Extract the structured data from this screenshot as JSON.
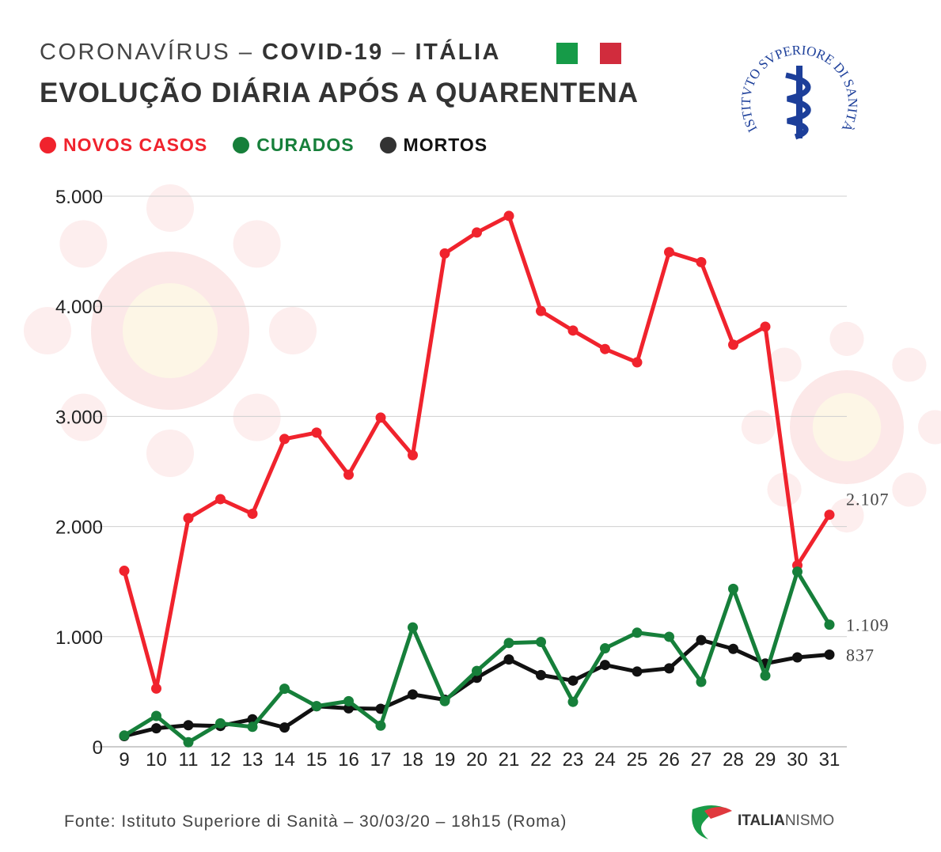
{
  "header": {
    "title_pre": "CORONAVÍRUS – ",
    "title_bold1": "COVID-19",
    "title_sep": " – ",
    "title_bold2": "ITÁLIA",
    "subtitle": "EVOLUÇÃO DIÁRIA APÓS A QUARENTENA"
  },
  "colors": {
    "red": "#f0232d",
    "green": "#167f3a",
    "black": "#111111",
    "flag_green": "#169b48",
    "flag_red": "#d12c3d"
  },
  "logo_iss": "ISTITVTO SVPERIORE DI SANITÀ",
  "logo_brand": {
    "a": "ITALIA",
    "b": "NISMO"
  },
  "source": "Fonte: Istituto Superiore di Sanità – 30/03/20 – 18h15 (Roma)",
  "chart_data": {
    "type": "line",
    "title": "EVOLUÇÃO DIÁRIA APÓS A QUARENTENA",
    "xlabel": "",
    "ylabel": "",
    "x": [
      "9",
      "10",
      "11",
      "12",
      "13",
      "14",
      "15",
      "16",
      "17",
      "18",
      "19",
      "20",
      "21",
      "22",
      "23",
      "24",
      "25",
      "26",
      "27",
      "28",
      "29",
      "30",
      "31"
    ],
    "ylim": [
      0,
      5000
    ],
    "yticks": [
      {
        "v": 0,
        "label": "0"
      },
      {
        "v": 1000,
        "label": "1.000"
      },
      {
        "v": 2000,
        "label": "2.000"
      },
      {
        "v": 3000,
        "label": "3.000"
      },
      {
        "v": 4000,
        "label": "4.000"
      },
      {
        "v": 5000,
        "label": "5.000"
      }
    ],
    "grid": true,
    "legend_position": "top-left",
    "series": [
      {
        "name": "NOVOS CASOS",
        "color": "#f0232d",
        "values": [
          1598,
          529,
          2076,
          2249,
          2116,
          2795,
          2853,
          2470,
          2989,
          2648,
          4480,
          4670,
          4821,
          3957,
          3780,
          3612,
          3491,
          4492,
          4401,
          3651,
          3815,
          1648,
          2107
        ],
        "end_label": "2.107"
      },
      {
        "name": "CURADOS",
        "color": "#167f3a",
        "values": [
          102,
          280,
          41,
          213,
          181,
          527,
          369,
          414,
          192,
          1084,
          415,
          689,
          943,
          952,
          408,
          894,
          1036,
          999,
          589,
          1434,
          646,
          1590,
          1109
        ],
        "end_label": "1.109"
      },
      {
        "name": "MORTOS",
        "color": "#111111",
        "values": [
          97,
          168,
          196,
          189,
          250,
          175,
          368,
          349,
          345,
          475,
          427,
          627,
          793,
          651,
          601,
          743,
          683,
          712,
          969,
          889,
          756,
          812,
          837
        ],
        "end_label": "837"
      }
    ]
  }
}
